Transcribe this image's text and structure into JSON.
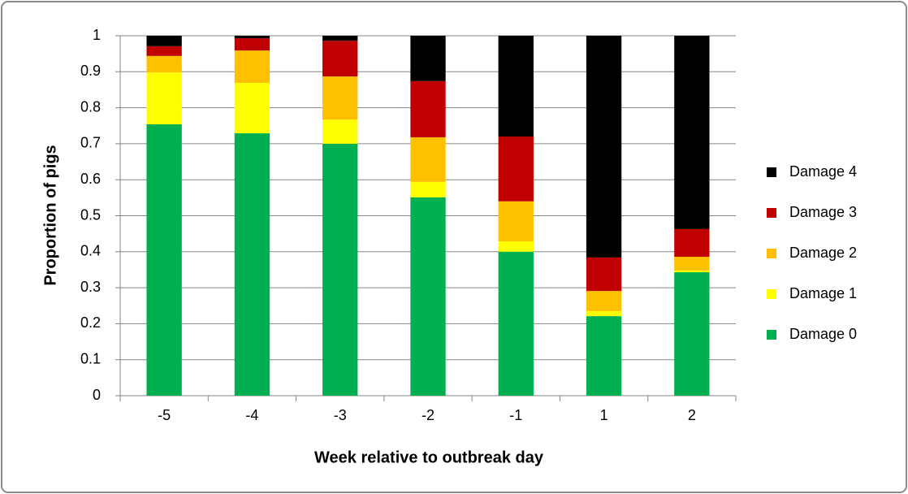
{
  "chart_data": {
    "type": "stacked_bar",
    "x_label": "Week relative to outbreak day",
    "y_label": "Proportion of pigs",
    "categories": [
      "-5",
      "-4",
      "-3",
      "-2",
      "-1",
      "1",
      "2"
    ],
    "series": [
      {
        "name": "Damage 0",
        "color": "#00b050",
        "values": [
          0.754,
          0.729,
          0.7,
          0.551,
          0.4,
          0.221,
          0.343
        ]
      },
      {
        "name": "Damage 1",
        "color": "#ffff00",
        "values": [
          0.144,
          0.14,
          0.067,
          0.043,
          0.029,
          0.014,
          0.005
        ]
      },
      {
        "name": "Damage 2",
        "color": "#ffc000",
        "values": [
          0.046,
          0.09,
          0.12,
          0.124,
          0.111,
          0.056,
          0.038
        ]
      },
      {
        "name": "Damage 3",
        "color": "#c00000",
        "values": [
          0.027,
          0.034,
          0.099,
          0.156,
          0.18,
          0.093,
          0.077
        ]
      },
      {
        "name": "Damage 4",
        "color": "#000000",
        "values": [
          0.029,
          0.007,
          0.014,
          0.126,
          0.28,
          0.616,
          0.537
        ]
      }
    ],
    "ylim": [
      0,
      1
    ],
    "yticks": [
      0,
      0.1,
      0.2,
      0.3,
      0.4,
      0.5,
      0.6,
      0.7,
      0.8,
      0.9,
      1
    ],
    "grid": true,
    "legend": "right"
  }
}
